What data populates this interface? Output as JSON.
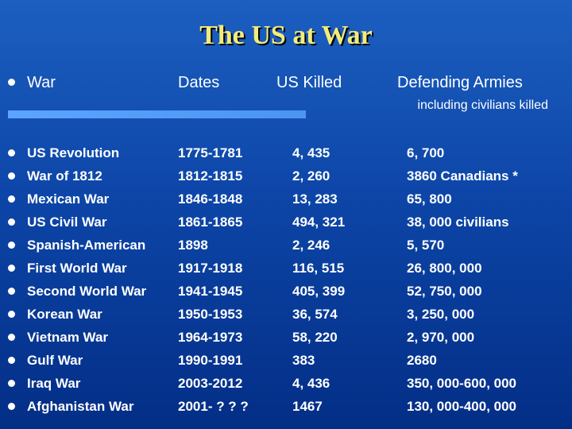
{
  "slide": {
    "title": "The US at War",
    "columns": {
      "war": "War",
      "dates": "Dates",
      "killed": "US Killed",
      "defending": "Defending Armies",
      "defending_note": "including civilians killed"
    },
    "rows": [
      {
        "war": "US Revolution",
        "dates": "1775-1781",
        "killed": "4, 435",
        "defending": "6, 700"
      },
      {
        "war": "War of 1812",
        "dates": "1812-1815",
        "killed": "2, 260",
        "defending": "3860  Canadians *"
      },
      {
        "war": "Mexican War",
        "dates": "1846-1848",
        "killed": "13, 283",
        "defending": "65, 800"
      },
      {
        "war": "US Civil War",
        "dates": "1861-1865",
        "killed": "494, 321",
        "defending": "38, 000 civilians"
      },
      {
        "war": "Spanish-American",
        "dates": "1898",
        "killed": "2, 246",
        "defending": "5, 570"
      },
      {
        "war": "First World War",
        "dates": "1917-1918",
        "killed": "116, 515",
        "defending": "26, 800, 000"
      },
      {
        "war": "Second World War",
        "dates": "1941-1945",
        "killed": "405, 399",
        "defending": "52, 750, 000"
      },
      {
        "war": "Korean War",
        "dates": "1950-1953",
        "killed": "36, 574",
        "defending": "3, 250, 000"
      },
      {
        "war": "Vietnam War",
        "dates": "1964-1973",
        "killed": "58, 220",
        "defending": "2, 970, 000"
      },
      {
        "war": "Gulf War",
        "dates": "1990-1991",
        "killed": "383",
        "defending": "2680"
      },
      {
        "war": "Iraq War",
        "dates": "2003-2012",
        "killed": "4, 436",
        "defending": "350, 000-600, 000"
      },
      {
        "war": "Afghanistan War",
        "dates": "2001- ? ? ?",
        "killed": "1467",
        "defending": "130, 000-400, 000"
      }
    ]
  },
  "colors": {
    "title": "#f3ec7a",
    "background_top": "#1c5fc0",
    "background_bottom": "#032e86",
    "divider": "#5ba4ff",
    "text": "#ffffff"
  }
}
